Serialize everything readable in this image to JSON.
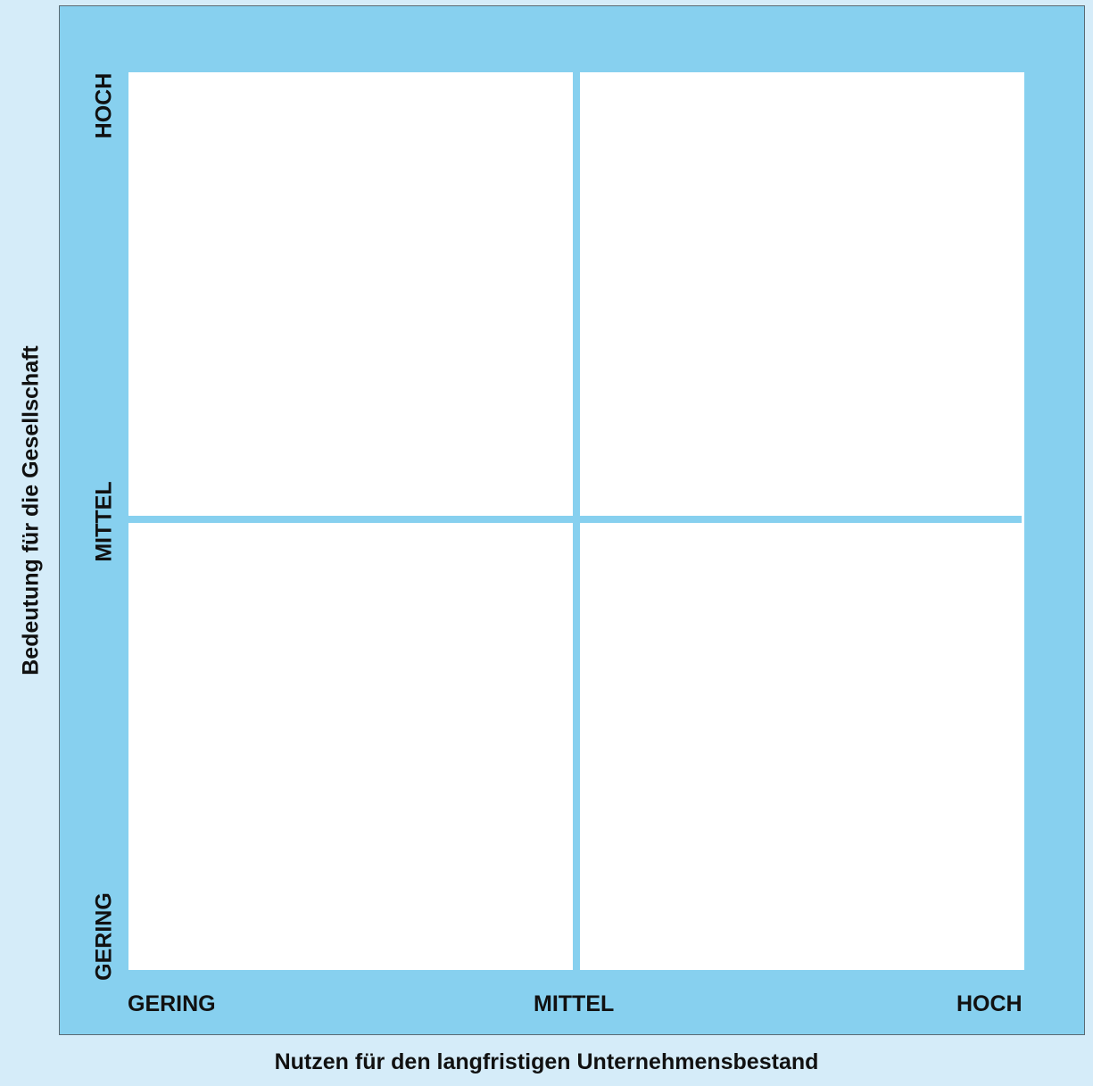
{
  "x_axis": {
    "label": "Nutzen für den langfristigen Unternehmensbestand",
    "ticks": [
      "GERING",
      "MITTEL",
      "HOCH"
    ]
  },
  "y_axis": {
    "label": "Bedeutung für die Gesellschaft",
    "ticks": [
      "GERING",
      "MITTEL",
      "HOCH"
    ]
  },
  "colors": {
    "frame": "#87d0ef",
    "background": "#d5ecf9",
    "plot_area": "#ffffff",
    "divider": "#87d0ef"
  }
}
